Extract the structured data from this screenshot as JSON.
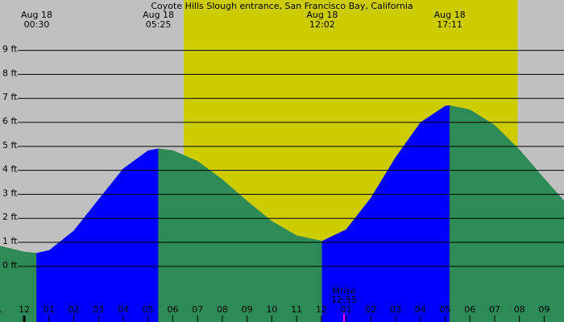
{
  "chart_data": {
    "type": "tide",
    "title": "Coyote Hills Slough entrance, San Francisco Bay, California",
    "x": [
      -1,
      0,
      0.5,
      1,
      2,
      3,
      4,
      5,
      5.417,
      6,
      7,
      8,
      9,
      10,
      11,
      12,
      12.033,
      13,
      14,
      15,
      16,
      17,
      17.183,
      18,
      19,
      20,
      21,
      22
    ],
    "values": [
      0.85,
      0.6,
      0.55,
      0.66,
      1.48,
      2.78,
      4.07,
      4.82,
      4.9,
      4.83,
      4.38,
      3.62,
      2.72,
      1.88,
      1.28,
      1.06,
      1.05,
      1.53,
      2.85,
      4.54,
      5.99,
      6.68,
      6.7,
      6.53,
      5.88,
      4.86,
      3.66,
      2.5
    ],
    "rising_color": "#0000ff",
    "falling_color": "#2e8b57",
    "background_color": "#c0c0c0",
    "daylight_color": "#cccc00",
    "daylight": [
      6.44,
      19.93
    ],
    "xlim": [
      -0.98,
      21.8
    ],
    "ylim": [
      -2.32,
      11.1
    ],
    "yticks": [
      {
        "value": 0,
        "label": "0 ft"
      },
      {
        "value": 1,
        "label": "1 ft"
      },
      {
        "value": 2,
        "label": "2 ft"
      },
      {
        "value": 3,
        "label": "3 ft"
      },
      {
        "value": 4,
        "label": "4 ft"
      },
      {
        "value": 5,
        "label": "5 ft"
      },
      {
        "value": 6,
        "label": "6 ft"
      },
      {
        "value": 7,
        "label": "7 ft"
      },
      {
        "value": 8,
        "label": "8 ft"
      },
      {
        "value": 9,
        "label": "9 ft"
      }
    ],
    "xticks": [
      {
        "value": -1,
        "label": "1"
      },
      {
        "value": 0,
        "label": "12"
      },
      {
        "value": 1,
        "label": "01"
      },
      {
        "value": 2,
        "label": "02"
      },
      {
        "value": 3,
        "label": "03"
      },
      {
        "value": 4,
        "label": "04"
      },
      {
        "value": 5,
        "label": "05"
      },
      {
        "value": 6,
        "label": "06"
      },
      {
        "value": 7,
        "label": "07"
      },
      {
        "value": 8,
        "label": "08"
      },
      {
        "value": 9,
        "label": "09"
      },
      {
        "value": 10,
        "label": "10"
      },
      {
        "value": 11,
        "label": "11"
      },
      {
        "value": 12,
        "label": "12"
      },
      {
        "value": 13,
        "label": "01"
      },
      {
        "value": 14,
        "label": "02"
      },
      {
        "value": 15,
        "label": "03"
      },
      {
        "value": 16,
        "label": "04"
      },
      {
        "value": 17,
        "label": "05"
      },
      {
        "value": 18,
        "label": "06"
      },
      {
        "value": 19,
        "label": "07"
      },
      {
        "value": 20,
        "label": "08"
      },
      {
        "value": 21,
        "label": "09"
      }
    ],
    "extremes": [
      {
        "date": "Aug 18",
        "time": "00:30",
        "x": 0.5
      },
      {
        "date": "Aug 18",
        "time": "05:25",
        "x": 5.417
      },
      {
        "date": "Aug 18",
        "time": "12:02",
        "x": 12.033
      },
      {
        "date": "Aug 18",
        "time": "17:11",
        "x": 17.183
      }
    ],
    "moonrise": {
      "label": "Mrise",
      "time": "12:55",
      "x": 12.917
    }
  }
}
